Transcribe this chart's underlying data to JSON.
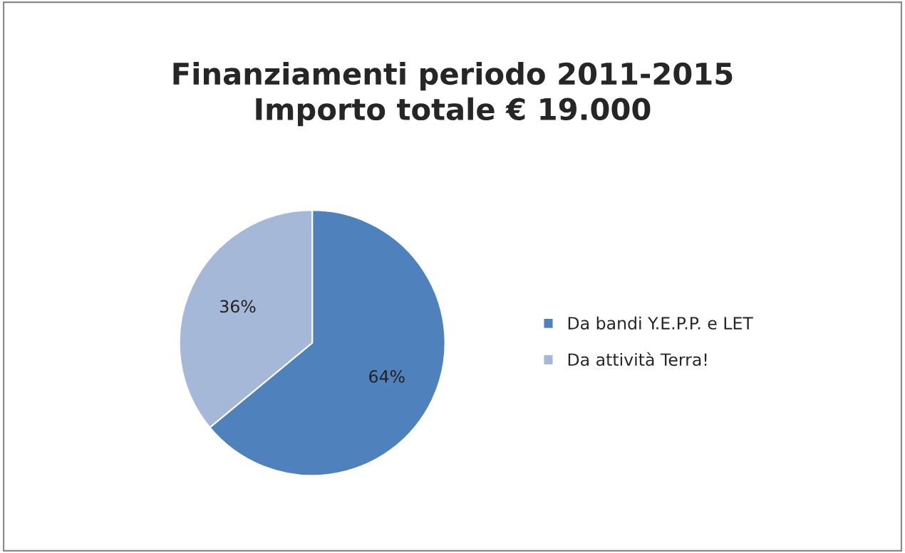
{
  "chart_data": {
    "type": "pie",
    "title": "Finanziamenti periodo 2011-2015\nImporto totale € 19.000",
    "categories": [
      "Da bandi Y.E.P.P. e LET",
      "Da attività Terra!"
    ],
    "values": [
      64,
      36
    ],
    "colors": [
      "#4f81bd",
      "#a5b8d8"
    ],
    "value_labels": [
      "64%",
      "36%"
    ],
    "legend": "right"
  }
}
